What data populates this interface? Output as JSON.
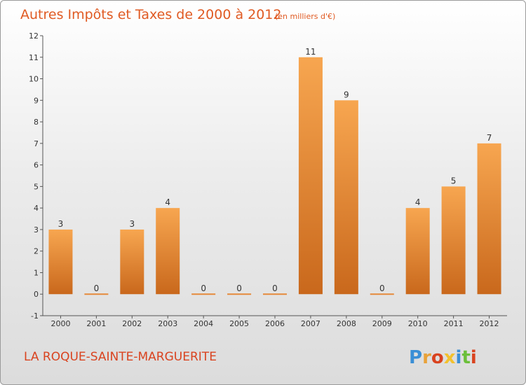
{
  "chart_data": {
    "type": "bar",
    "title": "Autres Impôts et Taxes de 2000 à 2012",
    "subtitle": "(en milliers d'€)",
    "categories": [
      "2000",
      "2001",
      "2002",
      "2003",
      "2004",
      "2005",
      "2006",
      "2007",
      "2008",
      "2009",
      "2010",
      "2011",
      "2012"
    ],
    "values": [
      3,
      0,
      3,
      4,
      0,
      0,
      0,
      11,
      9,
      0,
      4,
      5,
      7
    ],
    "ylim": [
      -1,
      12
    ],
    "yticks": [
      "-1",
      "0",
      "1",
      "2",
      "3",
      "4",
      "5",
      "6",
      "7",
      "8",
      "9",
      "10",
      "11",
      "12"
    ],
    "xlabel": "",
    "ylabel": "",
    "grid": false,
    "bar_color": "#f0913a"
  },
  "footer": {
    "location": "LA ROQUE-SAINTE-MARGUERITE",
    "brand": "Proxiti",
    "brand_colors": [
      "#3a8fd6",
      "#e8a23a",
      "#d9431f",
      "#f2c12e",
      "#3a8fd6",
      "#6bbf3a",
      "#d9431f"
    ]
  }
}
